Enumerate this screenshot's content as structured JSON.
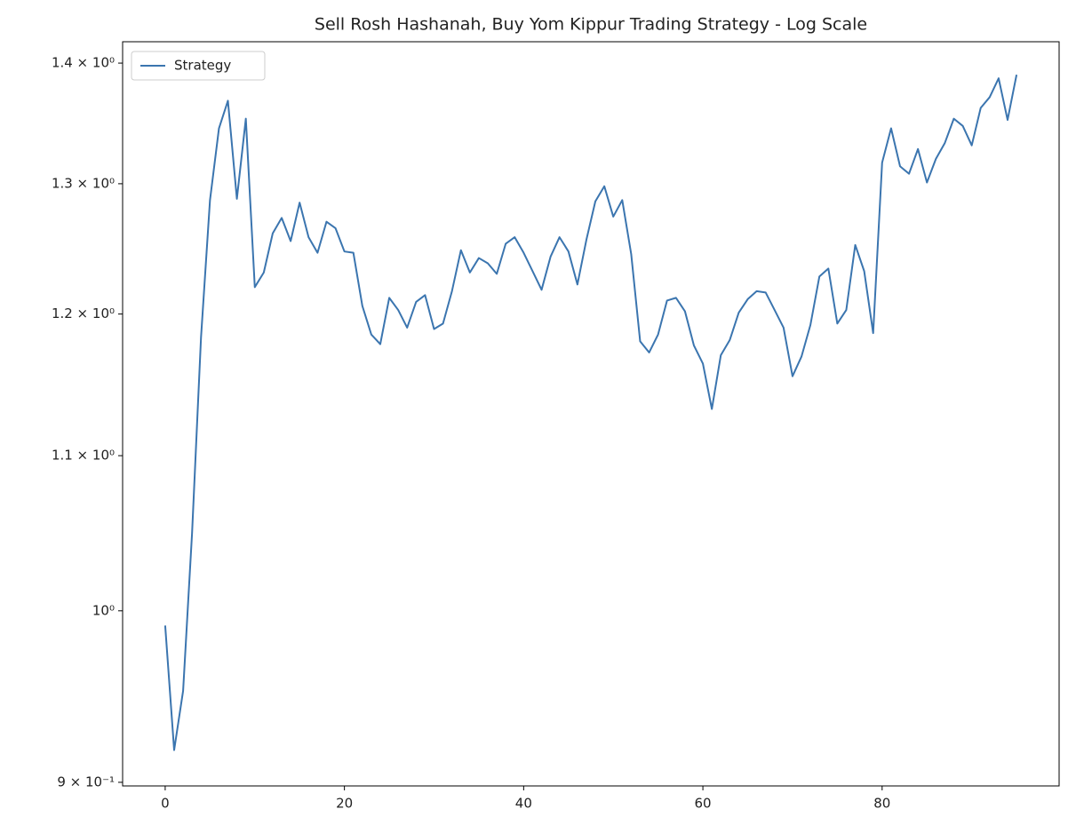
{
  "chart_data": {
    "type": "line",
    "title": "Sell Rosh Hashanah, Buy Yom Kippur Trading Strategy - Log Scale",
    "x": [
      0,
      1,
      2,
      3,
      4,
      5,
      6,
      7,
      8,
      9,
      10,
      11,
      12,
      13,
      14,
      15,
      16,
      17,
      18,
      19,
      20,
      21,
      22,
      23,
      24,
      25,
      26,
      27,
      28,
      29,
      30,
      31,
      32,
      33,
      34,
      35,
      36,
      37,
      38,
      39,
      40,
      41,
      42,
      43,
      44,
      45,
      46,
      47,
      48,
      49,
      50,
      51,
      52,
      53,
      54,
      55,
      56,
      57,
      58,
      59,
      60,
      61,
      62,
      63,
      64,
      65,
      66,
      67,
      68,
      69,
      70,
      71,
      72,
      73,
      74,
      75,
      76,
      77,
      78,
      79,
      80,
      81,
      82,
      83,
      84,
      85,
      86,
      87,
      88,
      89,
      90,
      91,
      92,
      93,
      94,
      95
    ],
    "series": [
      {
        "name": "Strategy",
        "color": "#3b75af",
        "values": [
          0.991,
          0.918,
          0.952,
          1.049,
          1.183,
          1.287,
          1.345,
          1.368,
          1.288,
          1.353,
          1.22,
          1.231,
          1.261,
          1.273,
          1.255,
          1.285,
          1.258,
          1.246,
          1.27,
          1.265,
          1.247,
          1.246,
          1.206,
          1.185,
          1.178,
          1.212,
          1.203,
          1.19,
          1.209,
          1.214,
          1.189,
          1.193,
          1.217,
          1.248,
          1.231,
          1.242,
          1.238,
          1.23,
          1.253,
          1.258,
          1.246,
          1.232,
          1.218,
          1.243,
          1.258,
          1.247,
          1.222,
          1.256,
          1.286,
          1.298,
          1.274,
          1.287,
          1.245,
          1.18,
          1.172,
          1.185,
          1.21,
          1.212,
          1.202,
          1.177,
          1.164,
          1.132,
          1.17,
          1.181,
          1.201,
          1.211,
          1.217,
          1.216,
          1.203,
          1.19,
          1.155,
          1.169,
          1.192,
          1.228,
          1.234,
          1.193,
          1.203,
          1.252,
          1.232,
          1.186,
          1.317,
          1.345,
          1.314,
          1.308,
          1.328,
          1.301,
          1.32,
          1.333,
          1.353,
          1.347,
          1.331,
          1.362,
          1.371,
          1.387,
          1.352,
          1.39
        ]
      }
    ],
    "xlim": [
      -4.75,
      99.75
    ],
    "xticks": [
      0,
      20,
      40,
      60,
      80
    ],
    "ylim": [
      0.898,
      1.4185
    ],
    "yscale": "log",
    "yticks": [
      {
        "value": 0.9,
        "label": "9 × 10⁻¹"
      },
      {
        "value": 1.0,
        "label": "10⁰"
      },
      {
        "value": 1.1,
        "label": "1.1 × 10⁰"
      },
      {
        "value": 1.2,
        "label": "1.2 × 10⁰"
      },
      {
        "value": 1.3,
        "label": "1.3 × 10⁰"
      },
      {
        "value": 1.4,
        "label": "1.4 × 10⁰"
      }
    ],
    "legend": "upper left",
    "grid": false
  }
}
